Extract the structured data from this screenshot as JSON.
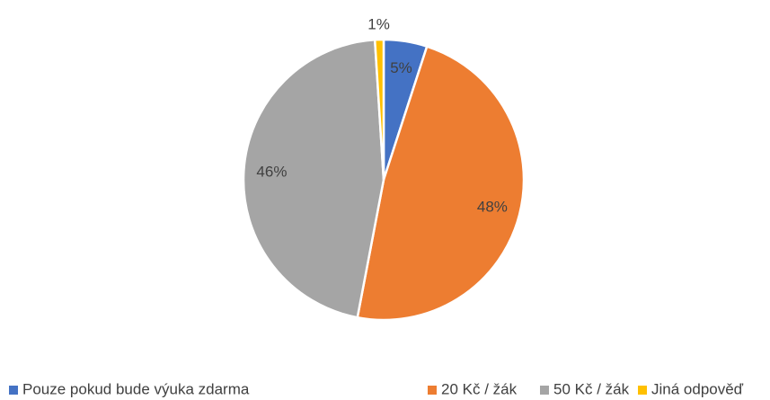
{
  "chart_data": {
    "type": "pie",
    "categories": [
      "Pouze pokud bude výuka zdarma",
      "20 Kč / žák",
      "50 Kč / žák",
      "Jiná odpověď"
    ],
    "values": [
      5,
      48,
      46,
      1
    ],
    "value_labels": [
      "5%",
      "48%",
      "46%",
      "1%"
    ],
    "colors": [
      "#4472c4",
      "#ed7d31",
      "#a5a5a5",
      "#ffc000"
    ],
    "legend": "bottom"
  }
}
